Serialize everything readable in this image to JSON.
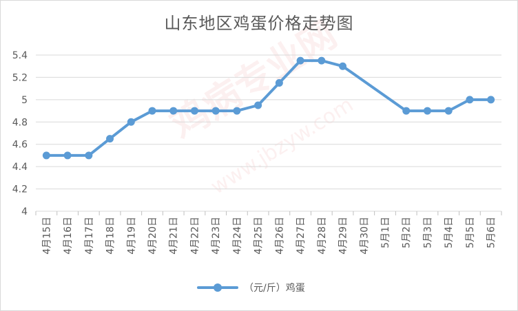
{
  "watermark": {
    "main": "鸡病专业网",
    "url": "www.jbzyw.com"
  },
  "chart_data": {
    "type": "line",
    "title": "山东地区鸡蛋价格走势图",
    "categories": [
      "4月15日",
      "4月16日",
      "4月17日",
      "4月18日",
      "4月19日",
      "4月20日",
      "4月21日",
      "4月22日",
      "4月23日",
      "4月24日",
      "4月25日",
      "4月26日",
      "4月27日",
      "4月28日",
      "4月29日",
      "4月30日",
      "5月1日",
      "5月2日",
      "5月3日",
      "5月4日",
      "5月5日",
      "5月6日"
    ],
    "series": [
      {
        "name": "（元/斤）鸡蛋",
        "values": [
          4.5,
          4.5,
          4.5,
          4.65,
          4.8,
          4.9,
          4.9,
          4.9,
          4.9,
          4.9,
          4.95,
          5.15,
          5.35,
          5.35,
          5.3,
          null,
          null,
          4.9,
          4.9,
          4.9,
          5.0,
          5.0
        ],
        "color": "#5b9bd5"
      }
    ],
    "ylim": [
      4,
      5.4
    ],
    "yticks": [
      4,
      4.2,
      4.4,
      4.6,
      4.8,
      5,
      5.2,
      5.4
    ],
    "grid": true,
    "legend_position": "bottom"
  }
}
